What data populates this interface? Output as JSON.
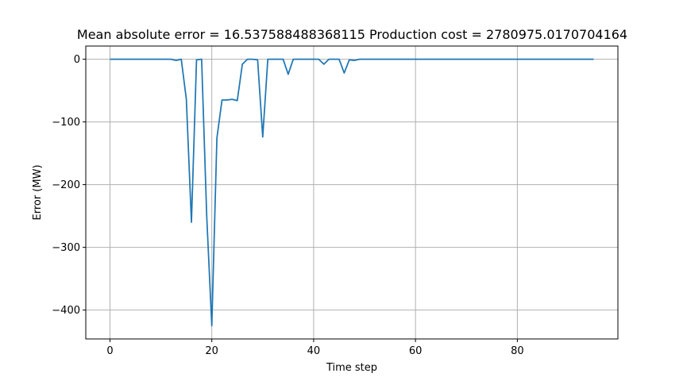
{
  "chart_data": {
    "type": "line",
    "title": "Mean absolute error = 16.537588488368115 Production cost = 2780975.0170704164",
    "xlabel": "Time step",
    "ylabel": "Error (MW)",
    "xlim": [
      -4.75,
      99.75
    ],
    "ylim": [
      -446,
      21
    ],
    "xticks": [
      0,
      20,
      40,
      60,
      80
    ],
    "yticks": [
      0,
      -100,
      -200,
      -300,
      -400
    ],
    "xtick_labels": [
      "0",
      "20",
      "40",
      "60",
      "80"
    ],
    "ytick_labels": [
      "0",
      "−100",
      "−200",
      "−300",
      "−400"
    ],
    "grid": true,
    "line_color": "#1f77b4",
    "series": [
      {
        "x": [
          0,
          1,
          2,
          3,
          4,
          5,
          6,
          7,
          8,
          9,
          10,
          11,
          12,
          13,
          14,
          15,
          16,
          17,
          18,
          19,
          20,
          21,
          22,
          23,
          24,
          25,
          26,
          27,
          28,
          29,
          30,
          31,
          32,
          33,
          34,
          35,
          36,
          37,
          38,
          39,
          40,
          41,
          42,
          43,
          44,
          45,
          46,
          47,
          48,
          49,
          50,
          51,
          52,
          53,
          54,
          55,
          56,
          57,
          58,
          59,
          60,
          61,
          62,
          63,
          64,
          65,
          66,
          67,
          68,
          69,
          70,
          71,
          72,
          73,
          74,
          75,
          76,
          77,
          78,
          79,
          80,
          81,
          82,
          83,
          84,
          85,
          86,
          87,
          88,
          89,
          90,
          91,
          92,
          93,
          94,
          95
        ],
        "values": [
          0,
          0,
          0,
          0,
          0,
          0,
          0,
          0,
          0,
          0,
          0,
          0,
          0,
          -2,
          0,
          -64,
          -260,
          -1,
          0,
          -250,
          -425,
          -126,
          -65,
          -65,
          -64,
          -66,
          -8,
          0,
          0,
          -1,
          -124,
          0,
          0,
          0,
          0,
          -24,
          0,
          0,
          0,
          0,
          0,
          0,
          -8,
          0,
          0,
          0,
          -22,
          -1,
          -2,
          0,
          0,
          0,
          0,
          0,
          0,
          0,
          0,
          0,
          0,
          0,
          0,
          0,
          0,
          0,
          0,
          0,
          0,
          0,
          0,
          0,
          0,
          0,
          0,
          0,
          0,
          0,
          0,
          0,
          0,
          0,
          0,
          0,
          0,
          0,
          0,
          0,
          0,
          0,
          0,
          0,
          0,
          0,
          0,
          0,
          0,
          0
        ]
      }
    ]
  }
}
